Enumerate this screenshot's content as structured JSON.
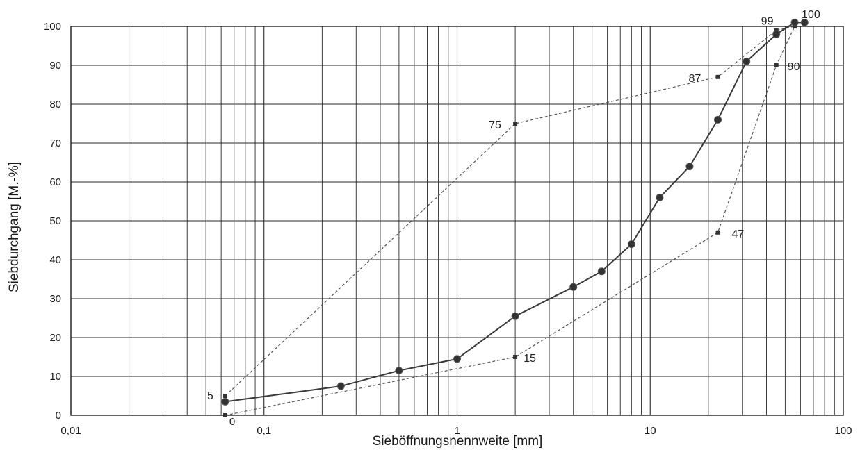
{
  "chart_data": {
    "type": "line",
    "title": "",
    "xlabel": "Sieböffnungsnennweite [mm]",
    "ylabel": "Siebdurchgang [M.-%]",
    "x_scale": "log",
    "xlim": [
      0.01,
      100
    ],
    "ylim": [
      0,
      100
    ],
    "x_tick_labels": [
      "0,01",
      "0,1",
      "1",
      "10",
      "100"
    ],
    "y_tick_labels": [
      "0",
      "10",
      "20",
      "30",
      "40",
      "50",
      "60",
      "70",
      "80",
      "90",
      "100"
    ],
    "grid": true,
    "extra_labels": [
      "0"
    ],
    "series": [
      {
        "style": "solid-markers",
        "color": "#3a3a3a",
        "x": [
          0.063,
          0.25,
          0.5,
          1,
          2,
          4,
          5.6,
          8,
          11.2,
          16,
          22.4,
          31.5,
          45,
          56,
          63
        ],
        "y": [
          3.5,
          7.5,
          11.5,
          14.5,
          25.5,
          33,
          37,
          44,
          56,
          64,
          76,
          91,
          98,
          101,
          101
        ]
      },
      {
        "style": "dashed-upper",
        "color": "#555555",
        "x": [
          0.063,
          2,
          22.4,
          45,
          56
        ],
        "y": [
          5,
          75,
          87,
          99,
          100
        ],
        "labels": [
          "5",
          "75",
          "87",
          "99",
          "100"
        ]
      },
      {
        "style": "dashed-lower",
        "color": "#555555",
        "x": [
          0.063,
          2,
          22.4,
          45,
          56
        ],
        "y": [
          0,
          15,
          47,
          90,
          100
        ],
        "labels": [
          "",
          "15",
          "47",
          "90",
          ""
        ]
      }
    ]
  }
}
